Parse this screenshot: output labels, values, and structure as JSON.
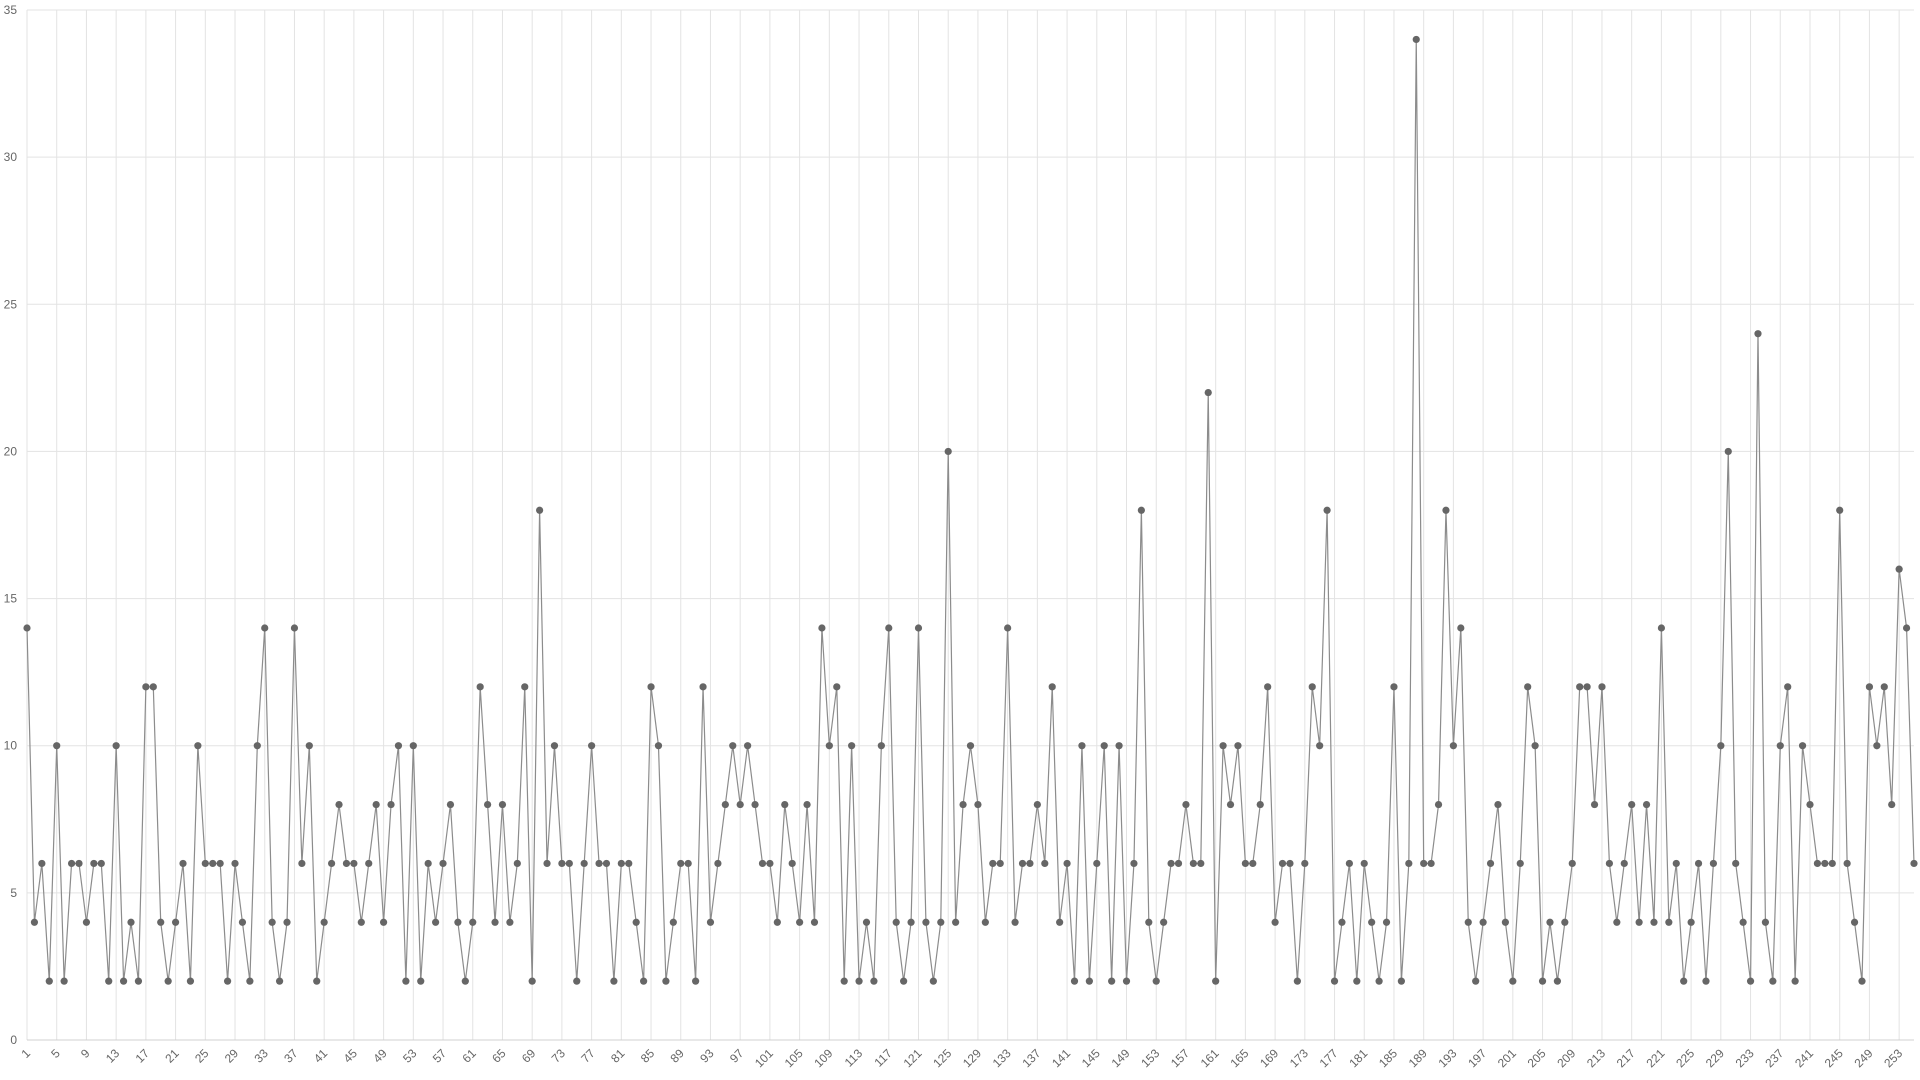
{
  "chart_data": {
    "type": "line",
    "categories": [
      1,
      null,
      null,
      null,
      5,
      null,
      null,
      null,
      9,
      null,
      null,
      null,
      13,
      null,
      null,
      null,
      17,
      null,
      null,
      null,
      21,
      null,
      null,
      null,
      25,
      null,
      null,
      null,
      29,
      null,
      null,
      null,
      33,
      null,
      null,
      null,
      37,
      null,
      null,
      null,
      41,
      null,
      null,
      null,
      45,
      null,
      null,
      null,
      49,
      null,
      null,
      null,
      53,
      null,
      null,
      null,
      57,
      null,
      null,
      null,
      61,
      null,
      null,
      null,
      65,
      null,
      null,
      null,
      69,
      null,
      null,
      null,
      73,
      null,
      null,
      null,
      77,
      null,
      null,
      null,
      81,
      null,
      null,
      null,
      85,
      null,
      null,
      null,
      89,
      null,
      null,
      null,
      93,
      null,
      null,
      null,
      97,
      null,
      null,
      null,
      101,
      null,
      null,
      null,
      105,
      null,
      null,
      null,
      109,
      null,
      null,
      null,
      113,
      null,
      null,
      null,
      117,
      null,
      null,
      null,
      121,
      null,
      null,
      null,
      125,
      null,
      null,
      null,
      129,
      null,
      null,
      null,
      133,
      null,
      null,
      null,
      137,
      null,
      null,
      null,
      141,
      null,
      null,
      null,
      145,
      null,
      null,
      null,
      149,
      null,
      null,
      null,
      153,
      null,
      null,
      null,
      157,
      null,
      null,
      null,
      161,
      null,
      null,
      null,
      165,
      null,
      null,
      null,
      169,
      null,
      null,
      null,
      173,
      null,
      null,
      null,
      177,
      null,
      null,
      null,
      181,
      null,
      null,
      null,
      185,
      null,
      null,
      null,
      189,
      null,
      null,
      null,
      193,
      null,
      null,
      null,
      197,
      null,
      null,
      null,
      201,
      null,
      null,
      null,
      205,
      null,
      null,
      null,
      209,
      null,
      null,
      null,
      213,
      null,
      null,
      null,
      217,
      null,
      null,
      null,
      221,
      null,
      null,
      null,
      225,
      null,
      null,
      null,
      229,
      null,
      null,
      null,
      233,
      null,
      null,
      null,
      237,
      null,
      null,
      null,
      241,
      null,
      null,
      null,
      245,
      null,
      null,
      null,
      249,
      null,
      null,
      null,
      253,
      null,
      null
    ],
    "values": [
      14,
      4,
      6,
      2,
      10,
      2,
      6,
      6,
      4,
      6,
      6,
      2,
      10,
      2,
      4,
      2,
      12,
      12,
      4,
      2,
      4,
      6,
      2,
      10,
      6,
      6,
      6,
      2,
      6,
      4,
      2,
      10,
      14,
      4,
      2,
      4,
      14,
      6,
      10,
      2,
      4,
      6,
      8,
      6,
      6,
      4,
      6,
      8,
      4,
      8,
      10,
      2,
      10,
      2,
      6,
      4,
      6,
      8,
      4,
      2,
      4,
      12,
      8,
      4,
      8,
      4,
      6,
      12,
      2,
      18,
      6,
      10,
      6,
      6,
      2,
      6,
      10,
      6,
      6,
      2,
      6,
      6,
      4,
      2,
      12,
      10,
      2,
      4,
      6,
      6,
      2,
      12,
      4,
      6,
      8,
      10,
      8,
      10,
      8,
      6,
      6,
      4,
      8,
      6,
      4,
      8,
      4,
      14,
      10,
      12,
      2,
      10,
      2,
      4,
      2,
      10,
      14,
      4,
      2,
      4,
      14,
      4,
      2,
      4,
      20,
      4,
      8,
      10,
      8,
      4,
      6,
      6,
      14,
      4,
      6,
      6,
      8,
      6,
      12,
      4,
      6,
      2,
      10,
      2,
      6,
      10,
      2,
      10,
      2,
      6,
      18,
      4,
      2,
      4,
      6,
      6,
      8,
      6,
      6,
      22,
      2,
      10,
      8,
      10,
      6,
      6,
      8,
      12,
      4,
      6,
      6,
      2,
      6,
      12,
      10,
      18,
      2,
      4,
      6,
      2,
      6,
      4,
      2,
      4,
      12,
      2,
      6,
      34,
      6,
      6,
      8,
      18,
      10,
      14,
      4,
      2,
      4,
      6,
      8,
      4,
      2,
      6,
      12,
      10,
      2,
      4,
      2,
      4,
      6,
      12,
      12,
      8,
      12,
      6,
      4,
      6,
      8,
      4,
      8,
      4,
      14,
      4,
      6,
      2,
      4,
      6,
      2,
      6,
      10,
      20,
      6,
      4,
      2,
      24,
      4,
      2,
      10,
      12,
      2,
      10,
      8,
      6,
      6,
      6,
      18,
      6,
      4,
      2,
      12,
      10,
      12,
      8,
      16,
      14,
      6
    ],
    "color": "#666666",
    "line_color": "#8c8c8c",
    "ylim": [
      0,
      35
    ],
    "yticks": [
      0,
      5,
      10,
      15,
      20,
      25,
      30,
      35
    ],
    "grid": true
  }
}
